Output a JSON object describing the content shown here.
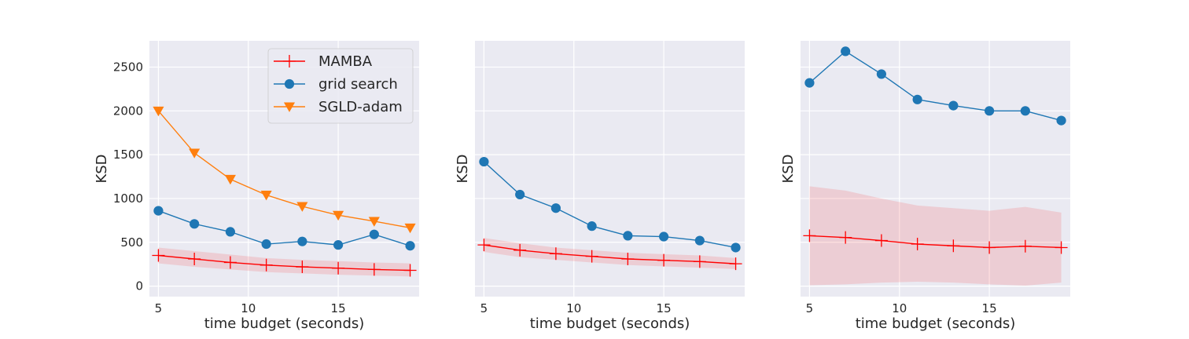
{
  "chart_data": [
    {
      "type": "line",
      "xlabel": "time budget (seconds)",
      "ylabel": "KSD",
      "x": [
        5,
        7,
        9,
        11,
        13,
        15,
        17,
        19
      ],
      "xticks": [
        5,
        10,
        15
      ],
      "ylim": [
        -120,
        2800
      ],
      "yticks": [
        0,
        500,
        1000,
        1500,
        2000,
        2500
      ],
      "show_yticklabels": true,
      "grid": true,
      "legend": "top-right",
      "series": [
        {
          "name": "MAMBA",
          "color": "#ff0000",
          "marker": "plus",
          "values": [
            350,
            310,
            270,
            240,
            220,
            205,
            190,
            180
          ],
          "band_lower": [
            260,
            220,
            190,
            160,
            145,
            130,
            120,
            110
          ],
          "band_upper": [
            440,
            400,
            360,
            320,
            300,
            285,
            270,
            260
          ]
        },
        {
          "name": "grid search",
          "color": "#1f77b4",
          "marker": "circle",
          "values": [
            860,
            710,
            620,
            480,
            510,
            470,
            590,
            460
          ]
        },
        {
          "name": "SGLD-adam",
          "color": "#ff7f0e",
          "marker": "triangle-down",
          "values": [
            2000,
            1520,
            1220,
            1040,
            910,
            810,
            740,
            665
          ]
        }
      ]
    },
    {
      "type": "line",
      "xlabel": "time budget (seconds)",
      "ylabel": "KSD",
      "x": [
        5,
        7,
        9,
        11,
        13,
        15,
        17,
        19
      ],
      "xticks": [
        5,
        10,
        15
      ],
      "ylim": [
        -120,
        2800
      ],
      "yticks": [
        0,
        500,
        1000,
        1500,
        2000,
        2500
      ],
      "show_yticklabels": false,
      "grid": true,
      "series": [
        {
          "name": "MAMBA",
          "color": "#ff0000",
          "marker": "plus",
          "values": [
            470,
            410,
            370,
            340,
            310,
            295,
            280,
            255
          ],
          "band_lower": [
            390,
            330,
            300,
            270,
            240,
            225,
            210,
            195
          ],
          "band_upper": [
            550,
            490,
            440,
            410,
            380,
            365,
            350,
            320
          ]
        },
        {
          "name": "grid search",
          "color": "#1f77b4",
          "marker": "circle",
          "values": [
            1420,
            1045,
            890,
            685,
            575,
            565,
            520,
            440
          ]
        }
      ]
    },
    {
      "type": "line",
      "xlabel": "time budget (seconds)",
      "ylabel": "KSD",
      "x": [
        5,
        7,
        9,
        11,
        13,
        15,
        17,
        19
      ],
      "xticks": [
        5,
        10,
        15
      ],
      "ylim": [
        -120,
        2800
      ],
      "yticks": [
        0,
        500,
        1000,
        1500,
        2000,
        2500
      ],
      "show_yticklabels": false,
      "grid": true,
      "series": [
        {
          "name": "MAMBA",
          "color": "#ff0000",
          "marker": "plus",
          "values": [
            575,
            555,
            520,
            480,
            460,
            440,
            455,
            440
          ],
          "band_lower": [
            10,
            20,
            40,
            50,
            40,
            20,
            5,
            40
          ],
          "band_upper": [
            1140,
            1090,
            1000,
            920,
            890,
            860,
            905,
            840
          ]
        },
        {
          "name": "grid search",
          "color": "#1f77b4",
          "marker": "circle",
          "values": [
            2320,
            2680,
            2420,
            2130,
            2060,
            2000,
            2000,
            1890
          ]
        }
      ]
    }
  ]
}
